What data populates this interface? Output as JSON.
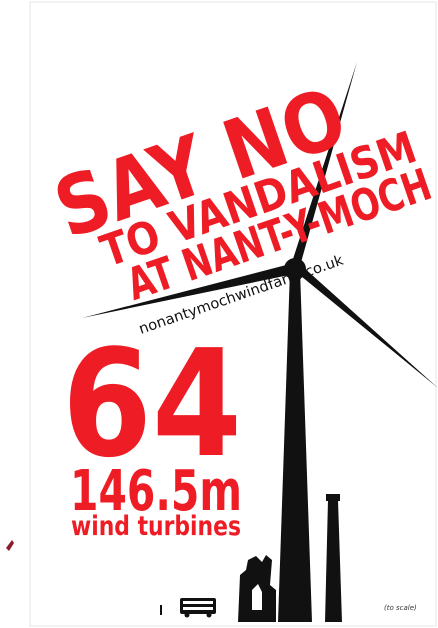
{
  "poster": {
    "headline": [
      "SAY NO",
      "TO VANDALISM",
      "AT NANT-Y-MOCH"
    ],
    "website": "nonantymochwindfarm.co.uk",
    "count": "64",
    "height": "146.5m",
    "caption": "wind turbines",
    "scale_note": "(to scale)"
  }
}
